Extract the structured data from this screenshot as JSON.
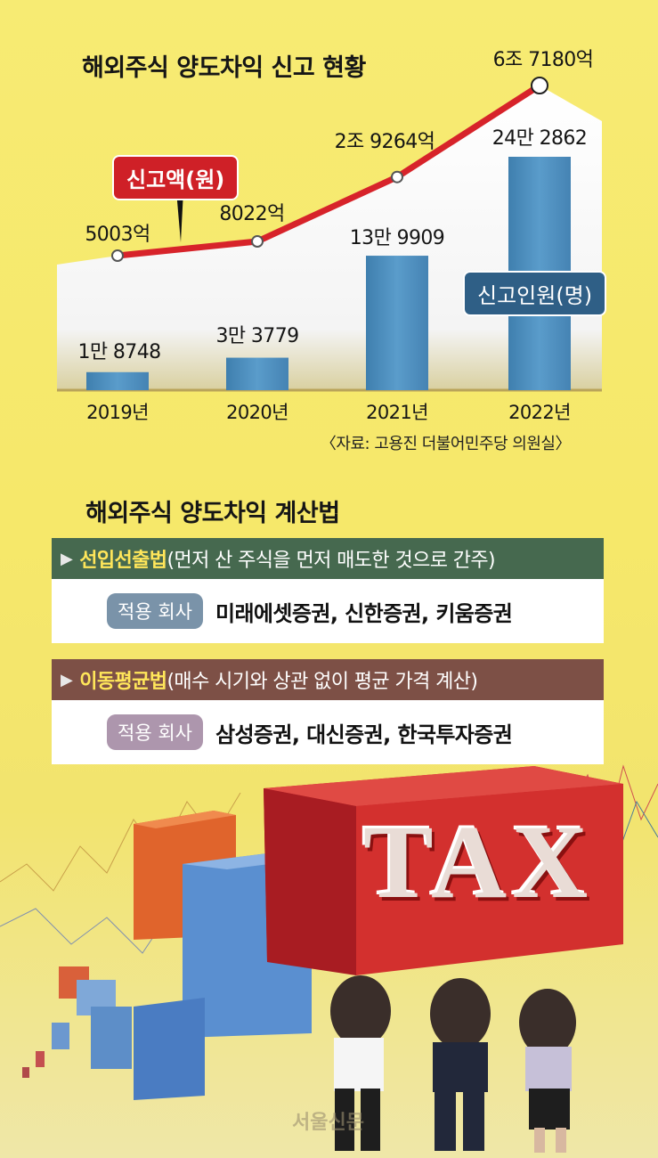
{
  "chart_data": {
    "type": "bar+line",
    "title": "해외주식 양도차익 신고 현황",
    "categories": [
      "2019년",
      "2020년",
      "2021년",
      "2022년"
    ],
    "series": [
      {
        "name": "신고액(원)",
        "type": "line",
        "values": [
          5003,
          8022,
          29264,
          67180
        ],
        "labels": [
          "5003억",
          "8022억",
          "2조 9264억",
          "6조 7180억"
        ],
        "color": "#d7232a"
      },
      {
        "name": "신고인원(명)",
        "type": "bar",
        "values": [
          18748,
          33779,
          139909,
          242862
        ],
        "labels": [
          "1만 8748",
          "3만 3779",
          "13만 9909",
          "24만 2862"
        ],
        "color": "#4f8fbf"
      }
    ],
    "source": "〈자료: 고용진 더불어민주당 의원실〉"
  },
  "calc": {
    "title": "해외주식 양도차익 계산법",
    "methods": [
      {
        "name": "선입선출법",
        "desc": "(먼저 산 주식을 먼저 매도한 것으로 간주)",
        "pill": "적용 회사",
        "companies": "미래에셋증권, 신한증권, 키움증권"
      },
      {
        "name": "이동평균법",
        "desc": "(매수 시기와 상관 없이 평균 가격 계산)",
        "pill": "적용 회사",
        "companies": "삼성증권, 대신증권, 한국투자증권"
      }
    ]
  },
  "illustration": {
    "tax_text": "TAX",
    "watermark": "서울신문"
  },
  "colors": {
    "background": "#f6e86a",
    "line": "#d7232a",
    "bar": "#4f8fbf",
    "fifo_header": "#46694f",
    "avg_header": "#7d5046"
  }
}
